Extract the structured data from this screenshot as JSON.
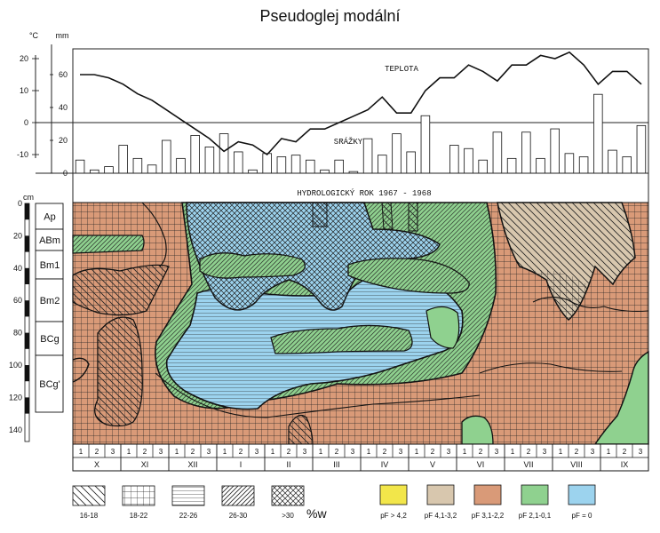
{
  "title": "Pseudoglej modální",
  "climate": {
    "temp_unit": "°C",
    "precip_unit": "mm",
    "temp_label": "TEPLOTA",
    "precip_label": "SRÁŽKY",
    "temp_ticks": [
      "20",
      "10",
      "0",
      "-10"
    ],
    "precip_ticks": [
      "60",
      "40",
      "20",
      "0"
    ],
    "precip_values": [
      8,
      2,
      4,
      17,
      9,
      5,
      20,
      9,
      23,
      16,
      24,
      13,
      2,
      12,
      10,
      11,
      8,
      2,
      8,
      1,
      21,
      11,
      24,
      13,
      35,
      0,
      17,
      15,
      8,
      25,
      9,
      25,
      9,
      27,
      12,
      10,
      48,
      14,
      10,
      29
    ],
    "temp_values": [
      15,
      15,
      14,
      12,
      9,
      7,
      4,
      1,
      -2,
      -5,
      -9,
      -6,
      -7,
      -10,
      -5,
      -6,
      -2,
      -2,
      0,
      2,
      4,
      8,
      3,
      3,
      10,
      14,
      14,
      18,
      16,
      13,
      18,
      18,
      21,
      20,
      22,
      18,
      12,
      16,
      16,
      12
    ]
  },
  "year_label": "HYDROLOGICKÝ  ROK  1967 - 1968",
  "depth": {
    "unit": "cm",
    "ticks": [
      "0",
      "20",
      "40",
      "60",
      "80",
      "100",
      "120",
      "140"
    ]
  },
  "horizons": [
    "Ap",
    "ABm",
    "Bm1",
    "Bm2",
    "BCg",
    "BCg'"
  ],
  "months": [
    "X",
    "XI",
    "XII",
    "I",
    "II",
    "III",
    "IV",
    "V",
    "VI",
    "VII",
    "VIII",
    "IX"
  ],
  "decades": [
    "1",
    "2",
    "3"
  ],
  "legend": {
    "patterns": [
      "16-18",
      "18-22",
      "22-26",
      "26-30",
      ">30"
    ],
    "unit": "%w",
    "colors": [
      {
        "label": "pF > 4,2",
        "color": "#f2e64a"
      },
      {
        "label": "pF 4,1-3,2",
        "color": "#d8c7ae"
      },
      {
        "label": "pF 3,1-2,2",
        "color": "#d99a78"
      },
      {
        "label": "pF 2,1-0,1",
        "color": "#8fd18f"
      },
      {
        "label": "pF = 0",
        "color": "#9cd3ee"
      }
    ]
  }
}
